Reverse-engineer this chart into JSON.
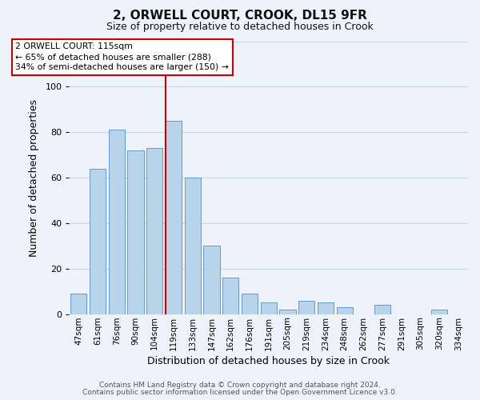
{
  "title": "2, ORWELL COURT, CROOK, DL15 9FR",
  "subtitle": "Size of property relative to detached houses in Crook",
  "xlabel": "Distribution of detached houses by size in Crook",
  "ylabel": "Number of detached properties",
  "bar_labels": [
    "47sqm",
    "61sqm",
    "76sqm",
    "90sqm",
    "104sqm",
    "119sqm",
    "133sqm",
    "147sqm",
    "162sqm",
    "176sqm",
    "191sqm",
    "205sqm",
    "219sqm",
    "234sqm",
    "248sqm",
    "262sqm",
    "277sqm",
    "291sqm",
    "305sqm",
    "320sqm",
    "334sqm"
  ],
  "bar_values": [
    9,
    64,
    81,
    72,
    73,
    85,
    60,
    30,
    16,
    9,
    5,
    2,
    6,
    5,
    3,
    0,
    4,
    0,
    0,
    2,
    0
  ],
  "bar_color": "#b8d4ea",
  "bar_edge_color": "#6699cc",
  "highlight_line_color": "#cc0000",
  "annotation_title": "2 ORWELL COURT: 115sqm",
  "annotation_line1": "← 65% of detached houses are smaller (288)",
  "annotation_line2": "34% of semi-detached houses are larger (150) →",
  "annotation_box_color": "#ffffff",
  "annotation_box_edge": "#cc0000",
  "ylim": [
    0,
    120
  ],
  "yticks": [
    0,
    20,
    40,
    60,
    80,
    100,
    120
  ],
  "footer1": "Contains HM Land Registry data © Crown copyright and database right 2024.",
  "footer2": "Contains public sector information licensed under the Open Government Licence v3.0.",
  "bg_color": "#eef2fb",
  "grid_color": "#c8d4ea"
}
